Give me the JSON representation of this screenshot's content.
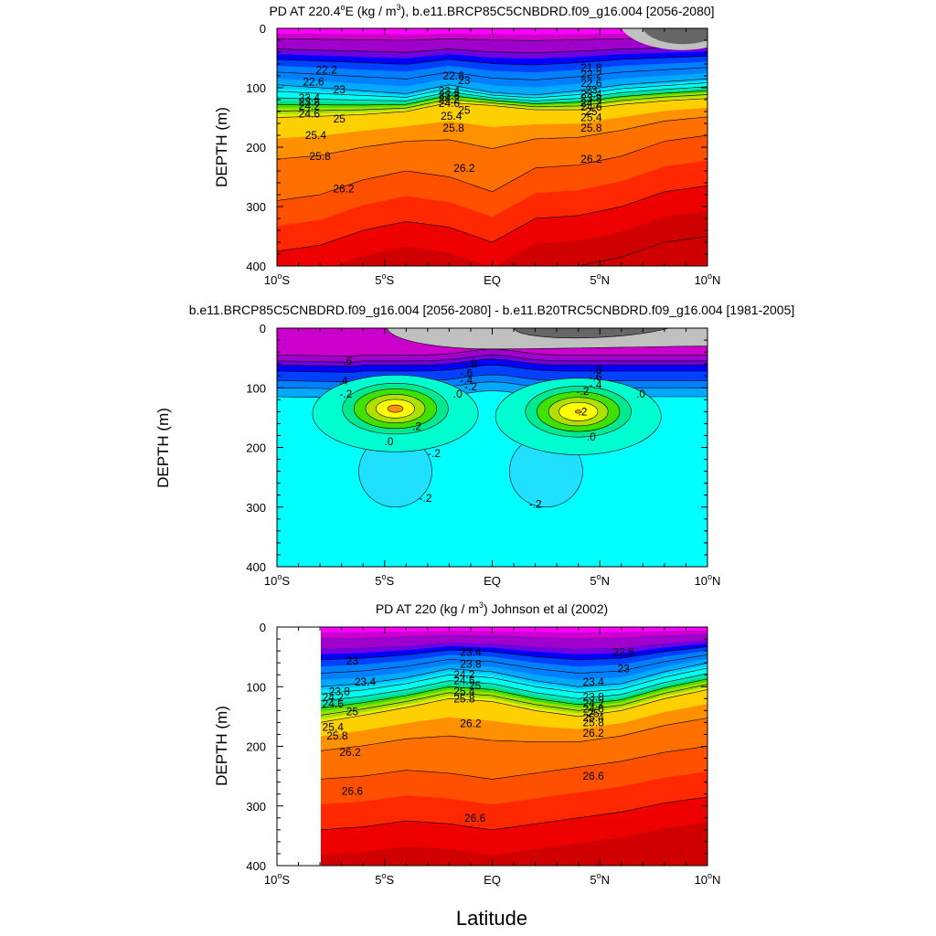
{
  "figure": {
    "xlabel": "Latitude"
  },
  "colors": {
    "dens": [
      "#ff00ff",
      "#cc00cc",
      "#a000cc",
      "#7000dd",
      "#0000ff",
      "#0040ff",
      "#0080ff",
      "#00a8ff",
      "#00c8ff",
      "#00e8ff",
      "#00ffee",
      "#00e8c0",
      "#00e080",
      "#40e000",
      "#a0e000",
      "#e8e800",
      "#ffd000",
      "#ff9000",
      "#ff7000",
      "#ff5000",
      "#ff2800",
      "#ee0000",
      "#d00000",
      "#b00000"
    ],
    "diff": [
      "#666666",
      "#c0c0c0",
      "#ff00ff",
      "#cc00cc",
      "#a000cc",
      "#7000dd",
      "#0000ff",
      "#0040ff",
      "#0080ff",
      "#00a8ff",
      "#00c8ff",
      "#00e0ff",
      "#00ffff",
      "#00ffcc",
      "#00e090",
      "#40e000",
      "#b0e000",
      "#ffff00",
      "#ff9000"
    ]
  },
  "chart_data": [
    {
      "type": "contour",
      "title": "PD AT 220.4°E (kg / m³), b.e11.BRCP85C5CNBDRD.f09_g16.004 [2056-2080]",
      "title_parts": {
        "a": "PD AT 220.4",
        "deg": "o",
        "b": "E (kg / m",
        "sup": "3",
        "c": "), b.e11.BRCP85C5CNBDRD.f09_g16.004 [2056-2080]"
      },
      "xlabel": "",
      "ylabel": "DEPTH (m)",
      "xlim": [
        -10,
        10
      ],
      "ylim": [
        0,
        400
      ],
      "xticks": [
        {
          "v": -10,
          "num": "10",
          "h": "S"
        },
        {
          "v": -5,
          "num": "5",
          "h": "S"
        },
        {
          "v": 0,
          "num": "EQ",
          "h": ""
        },
        {
          "v": 5,
          "num": "5",
          "h": "N"
        },
        {
          "v": 10,
          "num": "10",
          "h": "N"
        }
      ],
      "yticks": [
        0,
        100,
        200,
        300,
        400
      ],
      "levels": [
        21.8,
        22.2,
        22.6,
        23.0,
        23.4,
        23.8,
        24.2,
        24.6,
        25.0,
        25.4,
        25.8,
        26.2,
        26.6,
        27.0
      ],
      "lat_range": [
        -10,
        10
      ],
      "profiles": [
        {
          "lat": -10,
          "base": 95,
          "pyc": 150,
          "deep": 290
        },
        {
          "lat": -8,
          "base": 100,
          "pyc": 148,
          "deep": 280
        },
        {
          "lat": -6,
          "base": 105,
          "pyc": 145,
          "deep": 255
        },
        {
          "lat": -4,
          "base": 110,
          "pyc": 140,
          "deep": 240
        },
        {
          "lat": -2,
          "base": 95,
          "pyc": 125,
          "deep": 250
        },
        {
          "lat": 0,
          "base": 108,
          "pyc": 130,
          "deep": 275
        },
        {
          "lat": 2,
          "base": 112,
          "pyc": 137,
          "deep": 235
        },
        {
          "lat": 4,
          "base": 105,
          "pyc": 137,
          "deep": 230
        },
        {
          "lat": 6,
          "base": 95,
          "pyc": 128,
          "deep": 215
        },
        {
          "lat": 8,
          "base": 90,
          "pyc": 122,
          "deep": 190
        },
        {
          "lat": 10,
          "base": 85,
          "pyc": 118,
          "deep": 180
        }
      ],
      "labels": [
        {
          "t": "22.2",
          "x": -7.7,
          "y": 70
        },
        {
          "t": "22.6",
          "x": -8.3,
          "y": 90
        },
        {
          "t": "23",
          "x": -7.1,
          "y": 103
        },
        {
          "t": "23.4",
          "x": -8.5,
          "y": 117
        },
        {
          "t": "23.8",
          "x": -8.5,
          "y": 124
        },
        {
          "t": "24.2",
          "x": -8.5,
          "y": 131
        },
        {
          "t": "24.6",
          "x": -8.5,
          "y": 144
        },
        {
          "t": "25",
          "x": -7.1,
          "y": 152
        },
        {
          "t": "25.4",
          "x": -8.2,
          "y": 180
        },
        {
          "t": "25.8",
          "x": -8.0,
          "y": 215
        },
        {
          "t": "26.2",
          "x": -6.9,
          "y": 270
        },
        {
          "t": "22.6",
          "x": -1.8,
          "y": 80
        },
        {
          "t": "23",
          "x": -1.3,
          "y": 88
        },
        {
          "t": "23.4",
          "x": -2.0,
          "y": 105
        },
        {
          "t": "23.8",
          "x": -2.0,
          "y": 112
        },
        {
          "t": "24.2",
          "x": -2.0,
          "y": 119
        },
        {
          "t": "24.6",
          "x": -2.0,
          "y": 126
        },
        {
          "t": "25",
          "x": -1.3,
          "y": 138
        },
        {
          "t": "25.4",
          "x": -1.9,
          "y": 148
        },
        {
          "t": "25.8",
          "x": -1.8,
          "y": 168
        },
        {
          "t": "26.2",
          "x": -1.3,
          "y": 235
        },
        {
          "t": "21.8",
          "x": 4.6,
          "y": 66
        },
        {
          "t": "22.2",
          "x": 4.6,
          "y": 78
        },
        {
          "t": "22.6",
          "x": 4.6,
          "y": 92
        },
        {
          "t": "23",
          "x": 4.6,
          "y": 104
        },
        {
          "t": "23.4",
          "x": 4.6,
          "y": 111
        },
        {
          "t": "23.8",
          "x": 4.6,
          "y": 118
        },
        {
          "t": "24.2",
          "x": 4.6,
          "y": 125
        },
        {
          "t": "24.6",
          "x": 4.6,
          "y": 132
        },
        {
          "t": "25",
          "x": 4.6,
          "y": 140
        },
        {
          "t": "25.4",
          "x": 4.6,
          "y": 150
        },
        {
          "t": "25.8",
          "x": 4.6,
          "y": 168
        },
        {
          "t": "26.2",
          "x": 4.6,
          "y": 220
        }
      ]
    },
    {
      "type": "contour",
      "title": "b.e11.BRCP85C5CNBDRD.f09_g16.004 [2056-2080] - b.e11.B20TRC5CNBDRD.f09_g16.004 [1981-2005]",
      "xlabel": "",
      "ylabel": "DEPTH (m)",
      "xlim": [
        -10,
        10
      ],
      "ylim": [
        0,
        400
      ],
      "xticks": [
        {
          "v": -10,
          "num": "10",
          "h": "S"
        },
        {
          "v": -5,
          "num": "5",
          "h": "S"
        },
        {
          "v": 0,
          "num": "EQ",
          "h": ""
        },
        {
          "v": 5,
          "num": "5",
          "h": "N"
        },
        {
          "v": 10,
          "num": "10",
          "h": "N"
        }
      ],
      "yticks": [
        0,
        100,
        200,
        300,
        400
      ],
      "levels": [
        -0.8,
        -0.6,
        -0.4,
        -0.2,
        0.0,
        0.2,
        0.4,
        0.6
      ],
      "anomaly_cores": [
        {
          "lat": -4.5,
          "depth": 135,
          "peak": 0.5
        },
        {
          "lat": 4.0,
          "depth": 140,
          "peak": 0.45
        }
      ],
      "labels": [
        {
          "t": "-.6",
          "x": -6.8,
          "y": 55
        },
        {
          "t": "-.4",
          "x": -7.0,
          "y": 88
        },
        {
          "t": "-.2",
          "x": -6.8,
          "y": 110
        },
        {
          "t": ".2",
          "x": -3.5,
          "y": 165
        },
        {
          "t": ".0",
          "x": -4.8,
          "y": 190
        },
        {
          "t": "-.2",
          "x": -2.7,
          "y": 210
        },
        {
          "t": "-.2",
          "x": -3.1,
          "y": 285
        },
        {
          "t": "-.8",
          "x": -1.0,
          "y": 60
        },
        {
          "t": "-.6",
          "x": -1.2,
          "y": 75
        },
        {
          "t": "-.4",
          "x": -1.2,
          "y": 87
        },
        {
          "t": "-.2",
          "x": -1.0,
          "y": 98
        },
        {
          "t": ".0",
          "x": -1.6,
          "y": 110
        },
        {
          "t": "-.8",
          "x": 4.8,
          "y": 70
        },
        {
          "t": "-.6",
          "x": 4.8,
          "y": 82
        },
        {
          "t": "-.4",
          "x": 4.8,
          "y": 95
        },
        {
          "t": "-.2",
          "x": 4.2,
          "y": 106
        },
        {
          "t": ".0",
          "x": 6.9,
          "y": 110
        },
        {
          "t": ".2",
          "x": 4.2,
          "y": 140
        },
        {
          "t": ".0",
          "x": 4.6,
          "y": 182
        },
        {
          "t": "-.2",
          "x": 2.0,
          "y": 295
        }
      ]
    },
    {
      "type": "contour",
      "title": "PD AT 220 (kg / m³) Johnson et al (2002)",
      "title_parts": {
        "a": "PD AT 220 (kg / m",
        "sup": "3",
        "c": ") Johnson et al (2002)"
      },
      "xlabel": "Latitude",
      "ylabel": "DEPTH (m)",
      "xlim": [
        -10,
        10
      ],
      "ylim": [
        0,
        400
      ],
      "xticks": [
        {
          "v": -10,
          "num": "10",
          "h": "S"
        },
        {
          "v": -5,
          "num": "5",
          "h": "S"
        },
        {
          "v": 0,
          "num": "EQ",
          "h": ""
        },
        {
          "v": 5,
          "num": "5",
          "h": "N"
        },
        {
          "v": 10,
          "num": "10",
          "h": "N"
        }
      ],
      "yticks": [
        0,
        100,
        200,
        300,
        400
      ],
      "levels": [
        22.6,
        23.0,
        23.4,
        23.8,
        24.2,
        24.6,
        25.0,
        25.4,
        25.8,
        26.2,
        26.6
      ],
      "lat_range": [
        -8,
        10
      ],
      "profiles": [
        {
          "lat": -8,
          "base": 100,
          "pyc": 160,
          "deep": 255
        },
        {
          "lat": -6,
          "base": 95,
          "pyc": 148,
          "deep": 250
        },
        {
          "lat": -4,
          "base": 85,
          "pyc": 135,
          "deep": 240
        },
        {
          "lat": -2,
          "base": 70,
          "pyc": 120,
          "deep": 245
        },
        {
          "lat": 0,
          "base": 75,
          "pyc": 125,
          "deep": 255
        },
        {
          "lat": 2,
          "base": 90,
          "pyc": 140,
          "deep": 245
        },
        {
          "lat": 4,
          "base": 100,
          "pyc": 150,
          "deep": 235
        },
        {
          "lat": 6,
          "base": 95,
          "pyc": 140,
          "deep": 225
        },
        {
          "lat": 8,
          "base": 75,
          "pyc": 120,
          "deep": 210
        },
        {
          "lat": 10,
          "base": 60,
          "pyc": 105,
          "deep": 200
        }
      ],
      "labels": [
        {
          "t": "23",
          "x": -6.5,
          "y": 57
        },
        {
          "t": "23.4",
          "x": -5.9,
          "y": 92
        },
        {
          "t": "23.8",
          "x": -7.1,
          "y": 108
        },
        {
          "t": "24.2",
          "x": -7.4,
          "y": 118
        },
        {
          "t": "24.6",
          "x": -7.4,
          "y": 129
        },
        {
          "t": "25",
          "x": -6.5,
          "y": 142
        },
        {
          "t": "25.4",
          "x": -7.4,
          "y": 168
        },
        {
          "t": "25.8",
          "x": -7.2,
          "y": 182
        },
        {
          "t": "26.2",
          "x": -6.6,
          "y": 210
        },
        {
          "t": "26.6",
          "x": -6.5,
          "y": 275
        },
        {
          "t": "23.4",
          "x": -1.0,
          "y": 42
        },
        {
          "t": "23.8",
          "x": -1.0,
          "y": 62
        },
        {
          "t": "24.2",
          "x": -1.3,
          "y": 80
        },
        {
          "t": "24.6",
          "x": -1.3,
          "y": 90
        },
        {
          "t": "25",
          "x": -0.8,
          "y": 98
        },
        {
          "t": "25.4",
          "x": -1.3,
          "y": 108
        },
        {
          "t": "25.8",
          "x": -1.3,
          "y": 120
        },
        {
          "t": "26.2",
          "x": -1.0,
          "y": 162
        },
        {
          "t": "26.6",
          "x": -0.8,
          "y": 320
        },
        {
          "t": "22.6",
          "x": 6.1,
          "y": 42
        },
        {
          "t": "23",
          "x": 6.1,
          "y": 70
        },
        {
          "t": "23.4",
          "x": 4.7,
          "y": 92
        },
        {
          "t": "23.8",
          "x": 4.7,
          "y": 117
        },
        {
          "t": "24.2",
          "x": 4.7,
          "y": 128
        },
        {
          "t": "24.6",
          "x": 4.7,
          "y": 137
        },
        {
          "t": "25",
          "x": 4.7,
          "y": 145
        },
        {
          "t": "25.4",
          "x": 4.7,
          "y": 152
        },
        {
          "t": "25.8",
          "x": 4.7,
          "y": 160
        },
        {
          "t": "26.2",
          "x": 4.7,
          "y": 178
        },
        {
          "t": "26.6",
          "x": 4.7,
          "y": 250
        }
      ]
    }
  ]
}
